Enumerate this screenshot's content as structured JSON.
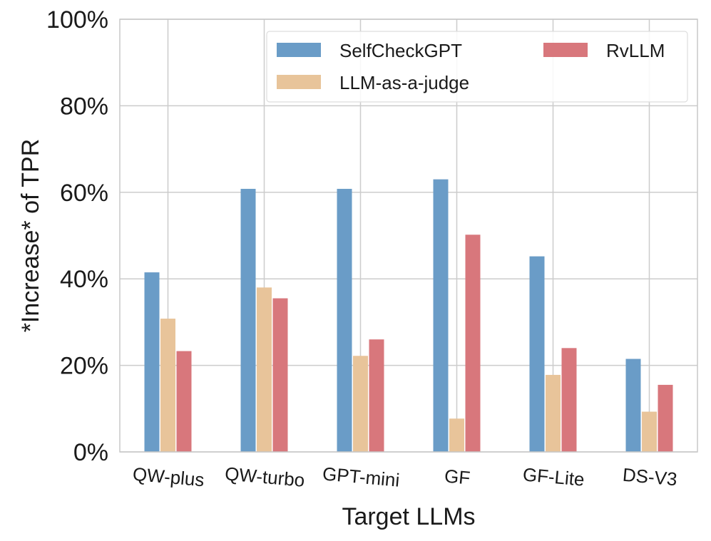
{
  "chart_data": {
    "type": "bar",
    "title": "",
    "xlabel": "Target LLMs",
    "ylabel": "*Increase* of TPR",
    "categories": [
      "QW-plus",
      "QW-turbo",
      "GPT-mini",
      "GF",
      "GF-Lite",
      "DS-V3"
    ],
    "yticks": [
      "0%",
      "20%",
      "40%",
      "60%",
      "80%",
      "100%"
    ],
    "ylim": [
      0,
      100
    ],
    "grid": true,
    "legend_position": "top-right",
    "series": [
      {
        "name": "SelfCheckGPT",
        "color": "#6a9cc7",
        "values": [
          41.5,
          60.8,
          60.8,
          63.0,
          45.2,
          21.5
        ]
      },
      {
        "name": "LLM-as-a-judge",
        "color": "#e8c49a",
        "values": [
          30.8,
          38.0,
          22.2,
          7.7,
          17.8,
          9.3
        ]
      },
      {
        "name": "RvLLM",
        "color": "#d8777c",
        "values": [
          23.3,
          35.5,
          26.0,
          50.2,
          24.0,
          15.5
        ]
      }
    ]
  }
}
